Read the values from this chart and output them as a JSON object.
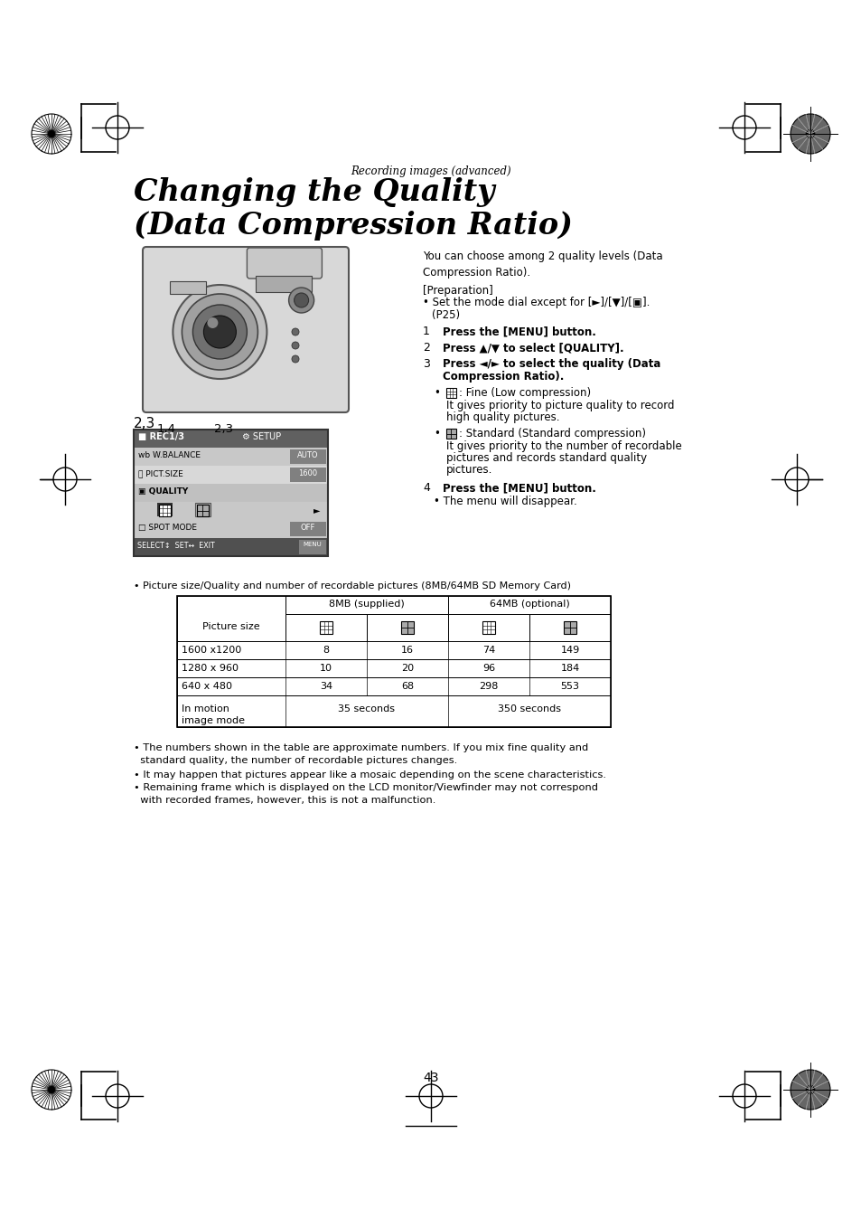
{
  "bg_color": "#ffffff",
  "page_number": "43",
  "section_label": "Recording images (advanced)",
  "title_line1": "Changing the Quality",
  "title_line2": "(Data Compression Ratio)",
  "intro_text": "You can choose among 2 quality levels (Data\nCompression Ratio).",
  "prep_label": "[Preparation]",
  "prep_bullet": "• Set the mode dial except for [►]/[▼]/[▣].\n  (P25)",
  "step1_num": "1",
  "step1_text": "Press the [MENU] button.",
  "step2_num": "2",
  "step2_text": "Press ▲/▼ to select [QUALITY].",
  "step3_num": "3",
  "step3_text": "Press ◄/► to select the quality (Data\nCompression Ratio).",
  "fine_text1": ": Fine (Low compression)",
  "fine_text2": "It gives priority to picture quality to record",
  "fine_text3": "high quality pictures.",
  "std_text1": ": Standard (Standard compression)",
  "std_text2": "It gives priority to the number of recordable",
  "std_text3": "pictures and records standard quality",
  "std_text4": "pictures.",
  "step4_num": "4",
  "step4_text": "Press the [MENU] button.",
  "step4_sub": "• The menu will disappear.",
  "table_note": "• Picture size/Quality and number of recordable pictures (8MB/64MB SD Memory Card)",
  "table_header_col1": "Picture size",
  "table_header_8mb": "8MB (supplied)",
  "table_header_64mb": "64MB (optional)",
  "data_rows": [
    [
      "1600 x1200",
      "8",
      "16",
      "74",
      "149"
    ],
    [
      "1280 x 960",
      "10",
      "20",
      "96",
      "184"
    ],
    [
      "640 x 480",
      "34",
      "68",
      "298",
      "553"
    ],
    [
      "In motion\nimage mode",
      "35 seconds",
      "",
      "350 seconds",
      ""
    ]
  ],
  "note1": "• The numbers shown in the table are approximate numbers. If you mix fine quality and\n  standard quality, the number of recordable pictures changes.",
  "note2": "• It may happen that pictures appear like a mosaic depending on the scene characteristics.",
  "note3": "• Remaining frame which is displayed on the LCD monitor/Viewfinder may not correspond\n  with recorded frames, however, this is not a malfunction.",
  "menu_label": "2,3",
  "camera_label": "1,4    2,3"
}
